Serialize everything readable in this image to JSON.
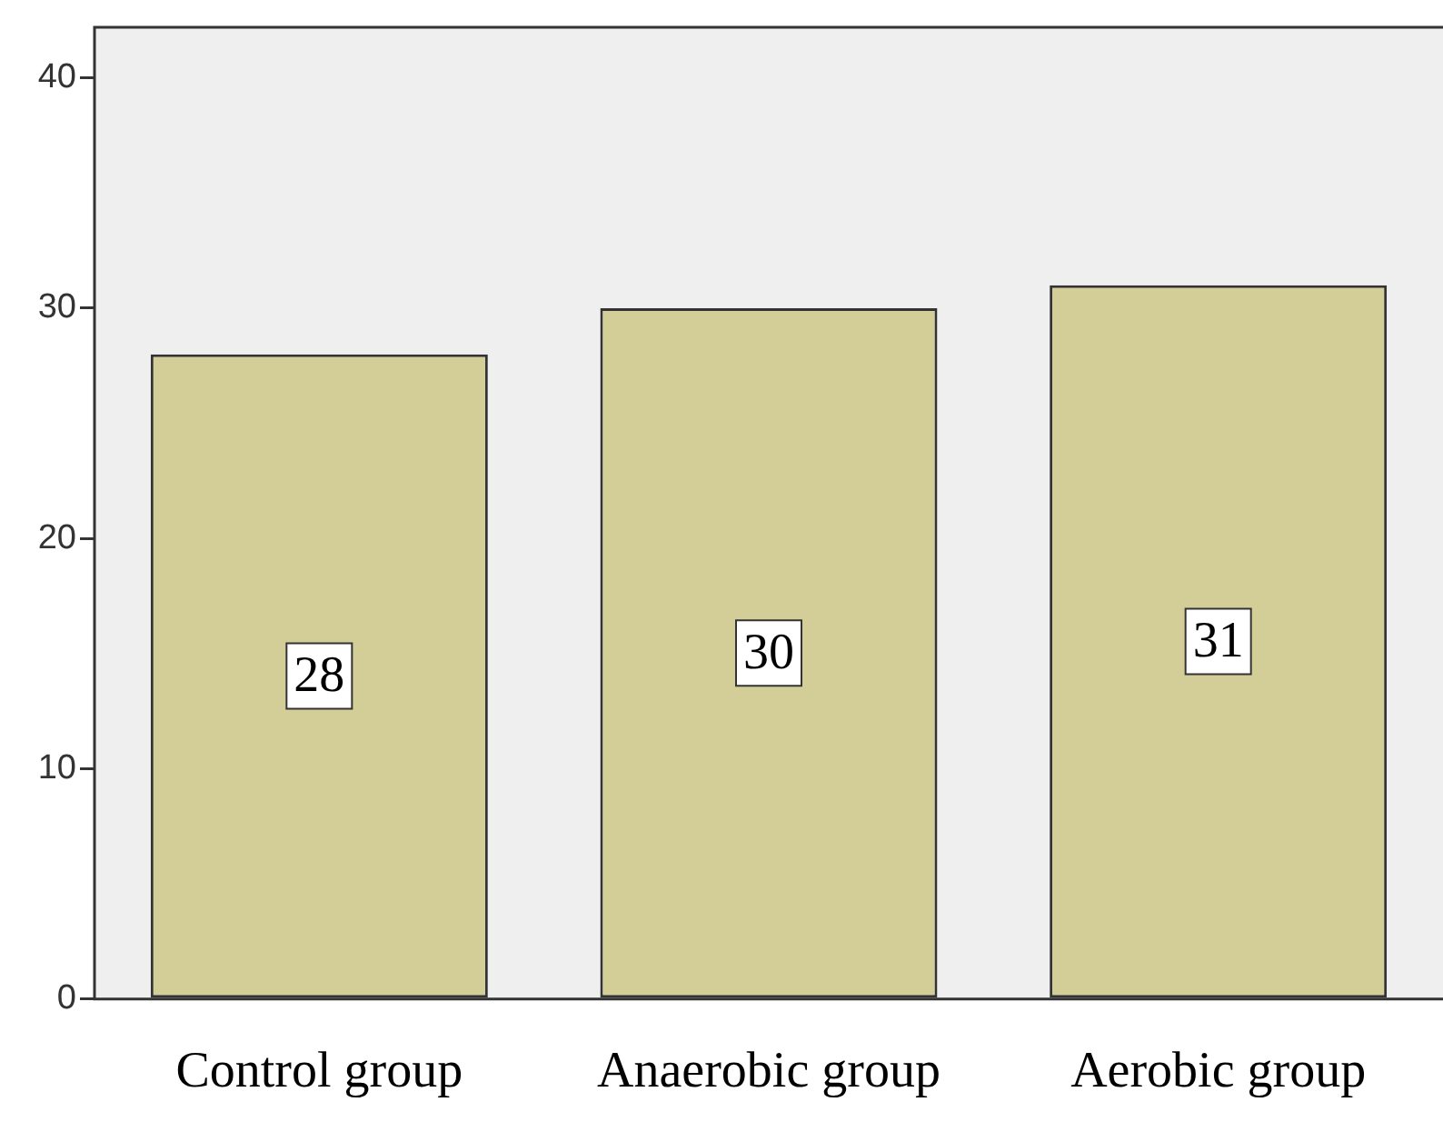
{
  "chart_data": {
    "type": "bar",
    "categories": [
      "Control group",
      "Anaerobic group",
      "Aerobic group"
    ],
    "values": [
      28,
      30,
      31
    ],
    "color": "#d3ce97",
    "ylim": [
      0,
      42.2
    ],
    "yticks": [
      0,
      10,
      20,
      30,
      40
    ],
    "data_labels": true,
    "grid": false,
    "legend": false
  }
}
